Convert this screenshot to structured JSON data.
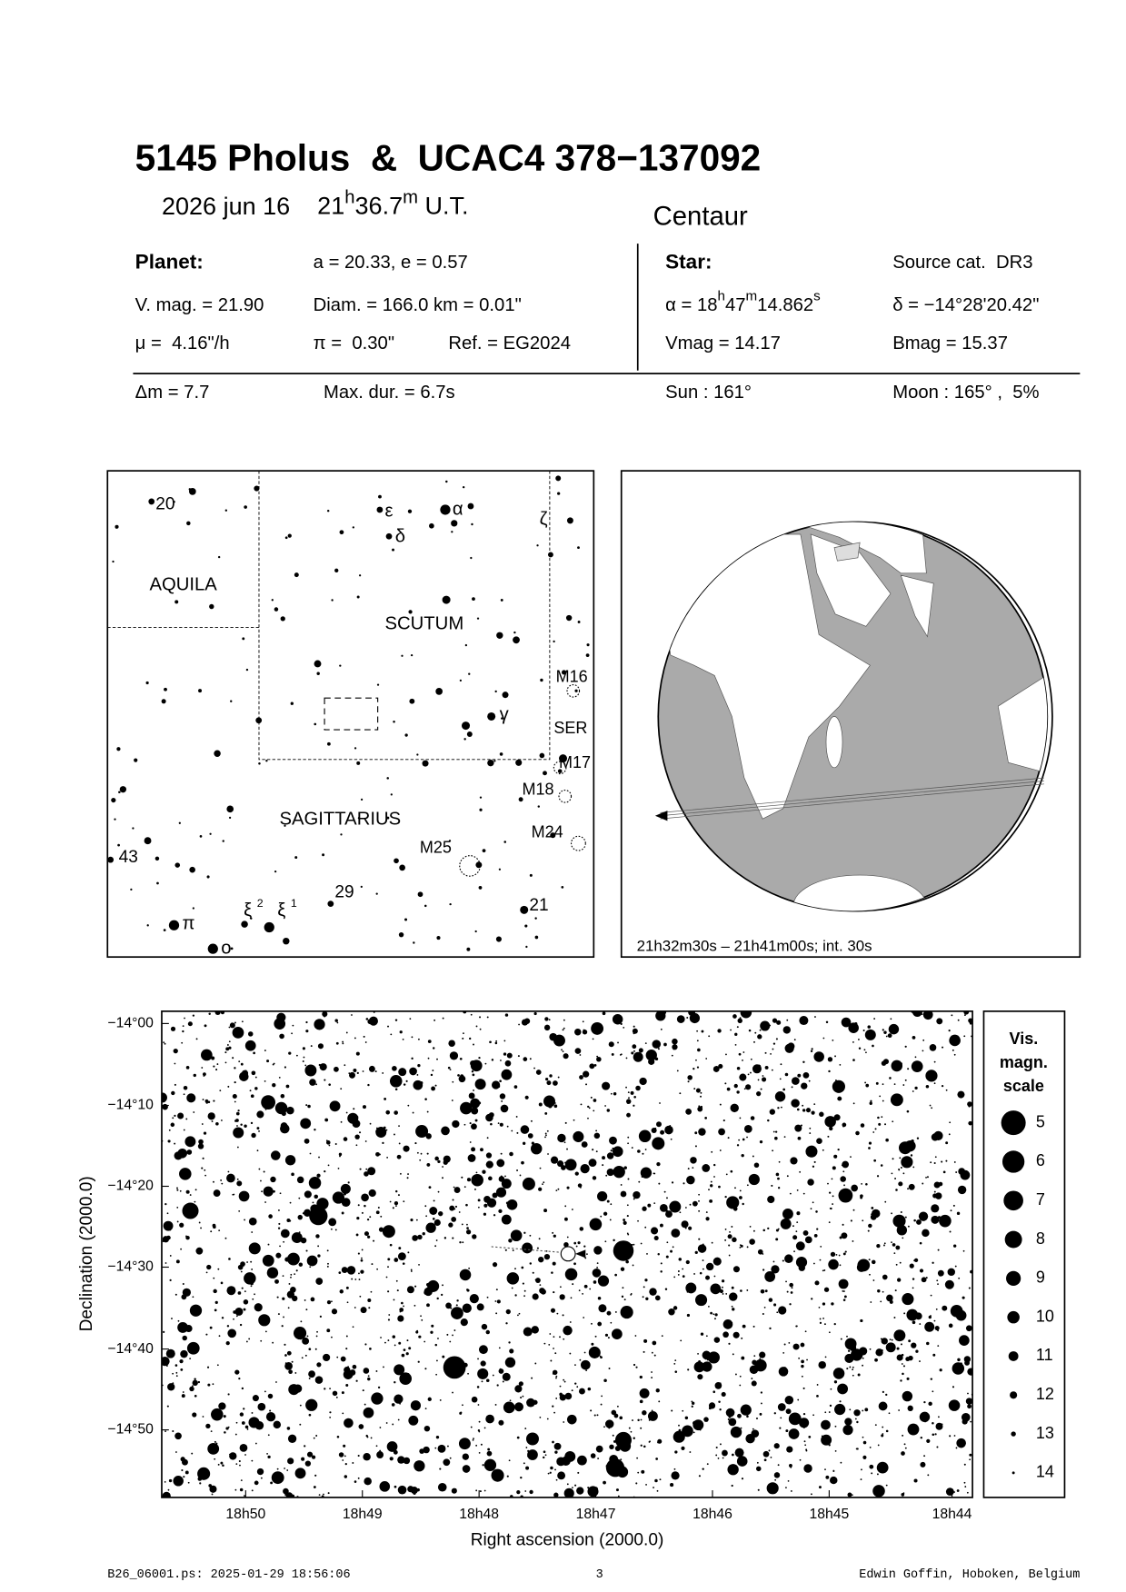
{
  "header": {
    "title": "5145 Pholus  &  UCAC4 378−137092",
    "date": "2026 jun 16",
    "time": [
      "21",
      "h",
      "36.7",
      "m",
      " U.T."
    ],
    "object_class": "Centaur"
  },
  "info": {
    "rows": [
      [
        "Planet:",
        "a = 20.33, e = 0.57",
        "Star:",
        "Source cat.  DR3"
      ],
      [
        "V. mag. = 21.90",
        "Diam. = 166.0 km = 0.01\"",
        [
          "α = 18",
          "h",
          "47",
          "m",
          "14.862",
          "s"
        ],
        "δ = −14°28'20.42\""
      ],
      [
        "μ =  4.16\"/h",
        "π =  0.30\"",
        "Ref. = EG2024",
        "Vmag = 14.17",
        "Bmag = 15.37"
      ],
      [
        "Δm = 7.7",
        "Max. dur. = 6.7s",
        "Sun : 161°",
        "Moon : 165° ,  5%"
      ]
    ]
  },
  "finder": {
    "labels": [
      "20",
      "AQUILA",
      "ε",
      "α",
      "δ",
      "ζ",
      "SCUTUM",
      "M16",
      "SER",
      "M17",
      "M18",
      "SAGITTARIUS",
      "M24",
      "M25",
      "43",
      "29",
      "21",
      "ξ",
      "2",
      "ξ",
      "1",
      "π",
      "ο",
      "γ"
    ]
  },
  "globe": {
    "caption": "21h32m30s – 21h41m00s; int. 30s"
  },
  "star_chart": {
    "yticks": [
      "−14°00",
      "−14°10",
      "−14°20",
      "−14°30",
      "−14°40",
      "−14°50"
    ],
    "xticks": [
      "18h50",
      "18h49",
      "18h48",
      "18h47",
      "18h46",
      "18h45",
      "18h44"
    ],
    "xlabel": "Right ascension (2000.0)",
    "ylabel": "Declination (2000.0)"
  },
  "legend": {
    "title": [
      "Vis.",
      "magn.",
      "scale"
    ],
    "mags": [
      5,
      6,
      7,
      8,
      9,
      10,
      11,
      12,
      13,
      14
    ]
  },
  "footer": {
    "left": "B26_06001.ps: 2025-01-29 18:56:06",
    "page": 3,
    "right": "Edwin Goffin, Hoboken, Belgium"
  }
}
